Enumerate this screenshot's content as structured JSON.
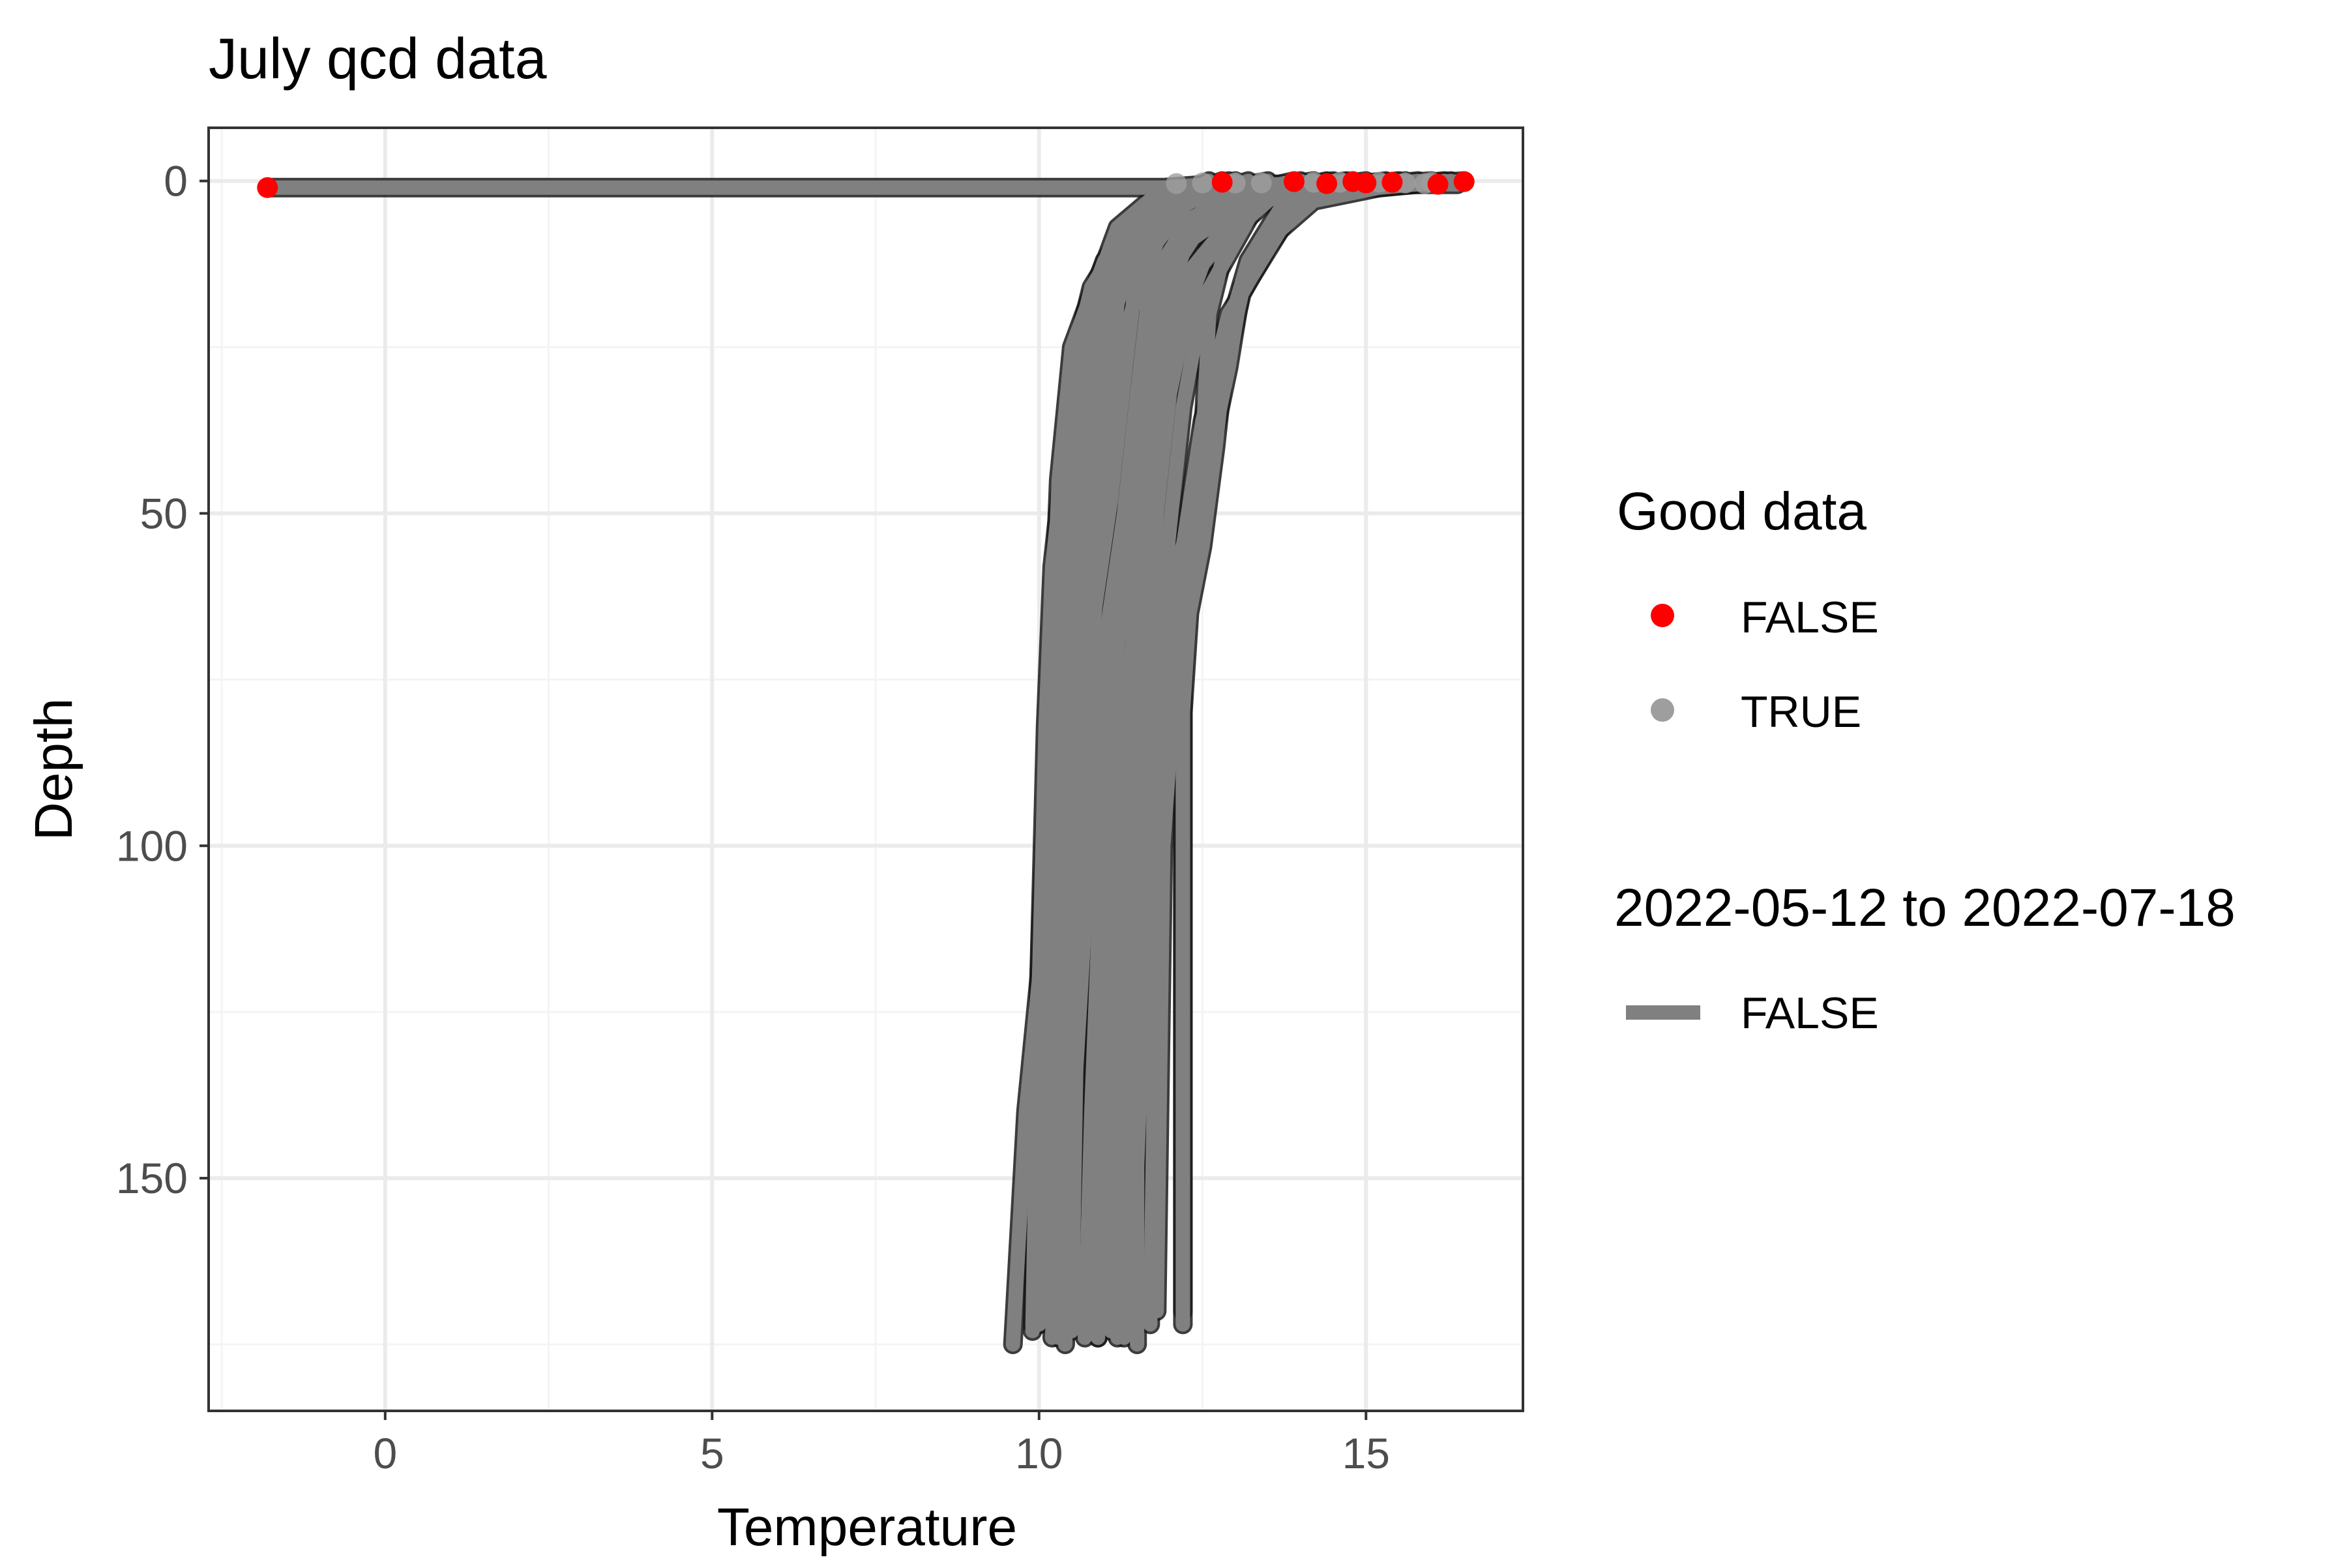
{
  "chart_data": {
    "type": "line",
    "title": "July qcd data",
    "xlabel": "Temperature",
    "ylabel": "Depth",
    "xlim": [
      -2.7,
      17.4
    ],
    "ylim": [
      185,
      -8
    ],
    "y_reversed": true,
    "x_ticks": [
      0,
      5,
      10,
      15
    ],
    "y_ticks": [
      0,
      50,
      100,
      150
    ],
    "grid": true,
    "legend_placement": "right",
    "legends": [
      {
        "title": "Good data",
        "entries": [
          {
            "label": "FALSE",
            "color": "#ff0000",
            "shape": "point"
          },
          {
            "label": "TRUE",
            "color": "#9e9e9e",
            "shape": "point"
          }
        ]
      },
      {
        "title": "2022-05-12 to 2022-07-18",
        "entries": [
          {
            "label": "FALSE",
            "color": "#808080",
            "shape": "line"
          }
        ]
      }
    ],
    "colors": {
      "line": "#808080",
      "bad_point": "#ff0000",
      "good_point": "#9e9e9e",
      "panel_border": "#333333",
      "grid_major": "#ebebeb",
      "grid_minor": "#f4f4f4",
      "tick_text": "#4d4d4d"
    },
    "series": [
      {
        "x": [
          -1.8,
          5.8,
          11.9,
          12.6,
          13.6,
          16.4
        ],
        "y": [
          1,
          1,
          1,
          0.5,
          0.5,
          0.5
        ]
      },
      {
        "x": [
          16.5,
          15.0,
          12.3,
          11.6,
          11.2,
          11.0,
          10.8,
          10.5,
          10.3,
          9.8,
          9.6
        ],
        "y": [
          0,
          1,
          3,
          8,
          12,
          28,
          45,
          65,
          90,
          140,
          175
        ]
      },
      {
        "x": [
          16.2,
          15.2,
          12.5,
          11.7,
          11.3,
          11.1,
          10.9,
          10.6,
          10.4,
          10.0,
          9.9
        ],
        "y": [
          0,
          1,
          2,
          7,
          11,
          26,
          43,
          62,
          85,
          130,
          173
        ]
      },
      {
        "x": [
          15.8,
          14.8,
          12.8,
          11.9,
          11.5,
          11.3,
          11.1,
          10.8,
          10.6,
          10.3,
          10.2
        ],
        "y": [
          0,
          1,
          3,
          8,
          13,
          30,
          48,
          68,
          92,
          140,
          174
        ]
      },
      {
        "x": [
          15.5,
          14.5,
          13.0,
          12.1,
          11.7,
          11.5,
          11.3,
          11.0,
          10.8,
          10.5,
          10.4
        ],
        "y": [
          0,
          1,
          3,
          9,
          15,
          32,
          50,
          70,
          95,
          145,
          175
        ]
      },
      {
        "x": [
          15.0,
          14.2,
          13.2,
          12.3,
          11.9,
          11.6,
          11.4,
          11.2,
          11.0,
          10.8,
          10.7
        ],
        "y": [
          0,
          1,
          3,
          9,
          14,
          30,
          48,
          66,
          90,
          140,
          174
        ]
      },
      {
        "x": [
          14.8,
          14.0,
          13.4,
          12.6,
          12.1,
          11.8,
          11.6,
          11.4,
          11.2,
          11.0,
          10.9
        ],
        "y": [
          0,
          1,
          3,
          10,
          16,
          33,
          52,
          72,
          96,
          145,
          174
        ]
      },
      {
        "x": [
          14.5,
          13.8,
          13.5,
          12.8,
          12.3,
          12.0,
          11.8,
          11.6,
          11.4,
          11.2,
          11.1
        ],
        "y": [
          0,
          1,
          3,
          9,
          15,
          30,
          48,
          68,
          92,
          142,
          173
        ]
      },
      {
        "x": [
          14.2,
          13.6,
          13.3,
          12.9,
          12.5,
          12.2,
          12.0,
          11.8,
          11.6,
          11.4,
          11.3
        ],
        "y": [
          0,
          1,
          4,
          11,
          18,
          34,
          52,
          72,
          96,
          145,
          174
        ]
      },
      {
        "x": [
          16.0,
          14.6,
          13.9,
          13.4,
          12.9,
          12.5,
          12.2,
          11.9,
          11.7,
          11.5,
          11.5
        ],
        "y": [
          0,
          1,
          4,
          12,
          20,
          36,
          55,
          75,
          100,
          148,
          175
        ]
      },
      {
        "x": [
          13.5,
          12.4,
          11.9,
          11.6,
          11.3,
          11.1,
          10.9,
          10.7,
          10.6,
          10.4
        ],
        "y": [
          0,
          2,
          7,
          14,
          23,
          40,
          60,
          80,
          120,
          172
        ]
      },
      {
        "x": [
          13.2,
          12.2,
          11.5,
          11.1,
          10.9,
          10.7,
          10.5,
          10.3,
          10.2,
          10.1
        ],
        "y": [
          0,
          3,
          8,
          15,
          25,
          42,
          62,
          85,
          125,
          170
        ]
      },
      {
        "x": [
          12.8,
          12.0,
          11.3,
          10.8,
          10.6,
          10.4,
          10.2,
          10.1,
          10.0,
          10.0
        ],
        "y": [
          0,
          3,
          8,
          16,
          24,
          40,
          58,
          82,
          120,
          172
        ]
      },
      {
        "x": [
          12.2,
          11.5,
          11.0,
          10.7,
          10.5,
          10.4,
          10.3,
          10.2,
          10.1
        ],
        "y": [
          1,
          5,
          12,
          20,
          30,
          48,
          70,
          110,
          171
        ]
      },
      {
        "x": [
          14.4,
          13.5,
          13.0,
          12.8,
          12.6,
          12.5,
          12.3,
          12.2,
          12.2
        ],
        "y": [
          0,
          2,
          6,
          12,
          20,
          40,
          58,
          76,
          172
        ]
      },
      {
        "x": [
          15.3,
          14.4,
          13.7,
          13.2,
          12.9,
          12.7,
          12.5,
          12.3,
          12.2,
          12.2
        ],
        "y": [
          0,
          1,
          4,
          12,
          22,
          40,
          55,
          65,
          80,
          170
        ]
      },
      {
        "x": [
          12.9,
          12.2,
          11.6,
          11.2,
          11.0,
          10.9,
          10.8,
          10.7,
          10.6,
          10.5
        ],
        "y": [
          0,
          3,
          7,
          14,
          22,
          38,
          56,
          78,
          115,
          173
        ]
      },
      {
        "x": [
          13.9,
          13.0,
          12.4,
          12.0,
          11.8,
          11.6,
          11.5,
          11.4,
          11.3,
          11.2
        ],
        "y": [
          0,
          2,
          6,
          12,
          20,
          38,
          55,
          75,
          110,
          174
        ]
      },
      {
        "x": [
          15.6,
          14.7,
          14.0,
          13.5,
          13.1,
          12.8,
          12.5,
          12.1,
          11.9,
          11.8,
          11.7
        ],
        "y": [
          0,
          1,
          3,
          10,
          17,
          30,
          45,
          58,
          75,
          110,
          172
        ]
      },
      {
        "x": [
          16.3,
          15.2,
          14.2,
          13.5,
          13.1,
          12.9,
          12.6,
          12.4,
          12.1,
          11.9,
          11.8
        ],
        "y": [
          0,
          1,
          3,
          9,
          16,
          28,
          42,
          55,
          72,
          100,
          170
        ]
      },
      {
        "x": [
          14.0,
          13.2,
          12.6,
          12.2,
          11.9,
          11.6,
          11.4,
          11.2,
          11.0,
          10.9,
          10.9
        ],
        "y": [
          0,
          2,
          5,
          11,
          19,
          33,
          50,
          70,
          95,
          140,
          174
        ]
      },
      {
        "x": [
          13.0,
          12.3,
          11.8,
          11.4,
          11.1,
          10.9,
          10.7,
          10.5,
          10.4,
          10.3
        ],
        "y": [
          0,
          3,
          7,
          13,
          21,
          36,
          55,
          78,
          120,
          174
        ]
      },
      {
        "x": [
          12.6,
          11.9,
          11.2,
          10.8,
          10.5,
          10.3,
          10.2,
          10.0,
          9.9
        ],
        "y": [
          0,
          4,
          9,
          17,
          25,
          45,
          70,
          120,
          172
        ]
      },
      {
        "x": [
          11.8,
          11.2,
          10.9,
          10.6,
          10.5,
          10.3,
          10.1,
          10.0
        ],
        "y": [
          2,
          7,
          15,
          30,
          50,
          80,
          130,
          172
        ]
      },
      {
        "x": [
          12.4,
          11.6,
          11.1,
          10.8,
          10.6,
          10.5,
          10.4,
          10.4
        ],
        "y": [
          1,
          6,
          14,
          28,
          45,
          75,
          120,
          173
        ]
      },
      {
        "x": [
          14.7,
          13.8,
          13.1,
          12.6,
          12.3,
          12.0,
          11.8,
          11.6,
          11.5,
          11.4
        ],
        "y": [
          0,
          1,
          4,
          10,
          18,
          32,
          50,
          72,
          110,
          173
        ]
      },
      {
        "x": [
          11.6,
          11.3,
          11.0,
          10.8,
          10.7,
          10.6,
          10.5,
          10.5
        ],
        "y": [
          5,
          10,
          18,
          30,
          50,
          85,
          130,
          172
        ]
      },
      {
        "x": [
          10.7,
          11.0,
          11.3,
          11.4
        ],
        "y": [
          24,
          20,
          12,
          8
        ]
      }
    ],
    "good_points": [
      {
        "x": 12.5,
        "y": 0.3
      },
      {
        "x": 13.0,
        "y": 0.3
      },
      {
        "x": 13.4,
        "y": 0.3
      },
      {
        "x": 14.2,
        "y": 0.2
      },
      {
        "x": 14.6,
        "y": 0.2
      },
      {
        "x": 15.2,
        "y": 0.2
      },
      {
        "x": 15.6,
        "y": 0.3
      },
      {
        "x": 16.0,
        "y": 0.2
      },
      {
        "x": 12.1,
        "y": 0.4
      },
      {
        "x": 15.9,
        "y": 0.4
      }
    ],
    "bad_points": [
      {
        "x": -1.8,
        "y": 1
      },
      {
        "x": 12.8,
        "y": 0.2
      },
      {
        "x": 13.9,
        "y": 0.1
      },
      {
        "x": 14.4,
        "y": 0.4
      },
      {
        "x": 14.8,
        "y": 0.1
      },
      {
        "x": 15.0,
        "y": 0.3
      },
      {
        "x": 15.4,
        "y": 0.2
      },
      {
        "x": 16.1,
        "y": 0.5
      },
      {
        "x": 16.5,
        "y": 0.1
      }
    ]
  }
}
